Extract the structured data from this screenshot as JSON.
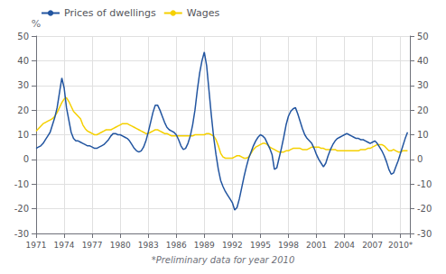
{
  "chart_data": {
    "type": "line",
    "xlabel": "*Preliminary data for year 2010",
    "ylabel": "%",
    "xlim": [
      1971,
      2011
    ],
    "xticks": [
      1971,
      1974,
      1977,
      1980,
      1983,
      1986,
      1989,
      1992,
      1995,
      1998,
      2001,
      2004,
      2007,
      {
        "value": 2010,
        "label": "2010*"
      }
    ],
    "ylim": [
      -30,
      50
    ],
    "yticks": [
      -30,
      -20,
      -10,
      0,
      10,
      20,
      30,
      40,
      50
    ],
    "y2lim": [
      -30,
      50
    ],
    "y2ticks": [
      -30,
      -20,
      -10,
      0,
      10,
      20,
      30,
      40,
      50
    ],
    "grid": true,
    "legend": "upper left",
    "x": [
      1971,
      1971.25,
      1971.5,
      1971.75,
      1972,
      1972.25,
      1972.5,
      1972.75,
      1973,
      1973.25,
      1973.5,
      1973.75,
      1974,
      1974.25,
      1974.5,
      1974.75,
      1975,
      1975.25,
      1975.5,
      1975.75,
      1976,
      1976.25,
      1976.5,
      1976.75,
      1977,
      1977.25,
      1977.5,
      1977.75,
      1978,
      1978.25,
      1978.5,
      1978.75,
      1979,
      1979.25,
      1979.5,
      1979.75,
      1980,
      1980.25,
      1980.5,
      1980.75,
      1981,
      1981.25,
      1981.5,
      1981.75,
      1982,
      1982.25,
      1982.5,
      1982.75,
      1983,
      1983.25,
      1983.5,
      1983.75,
      1984,
      1984.25,
      1984.5,
      1984.75,
      1985,
      1985.25,
      1985.5,
      1985.75,
      1986,
      1986.25,
      1986.5,
      1986.75,
      1987,
      1987.25,
      1987.5,
      1987.75,
      1988,
      1988.25,
      1988.5,
      1988.75,
      1989,
      1989.25,
      1989.5,
      1989.75,
      1990,
      1990.25,
      1990.5,
      1990.75,
      1991,
      1991.25,
      1991.5,
      1991.75,
      1992,
      1992.25,
      1992.5,
      1992.75,
      1993,
      1993.25,
      1993.5,
      1993.75,
      1994,
      1994.25,
      1994.5,
      1994.75,
      1995,
      1995.25,
      1995.5,
      1995.75,
      1996,
      1996.25,
      1996.5,
      1996.75,
      1997,
      1997.25,
      1997.5,
      1997.75,
      1998,
      1998.25,
      1998.5,
      1998.75,
      1999,
      1999.25,
      1999.5,
      1999.75,
      2000,
      2000.25,
      2000.5,
      2000.75,
      2001,
      2001.25,
      2001.5,
      2001.75,
      2002,
      2002.25,
      2002.5,
      2002.75,
      2003,
      2003.25,
      2003.5,
      2003.75,
      2004,
      2004.25,
      2004.5,
      2004.75,
      2005,
      2005.25,
      2005.5,
      2005.75,
      2006,
      2006.25,
      2006.5,
      2006.75,
      2007,
      2007.25,
      2007.5,
      2007.75,
      2008,
      2008.25,
      2008.5,
      2008.75,
      2009,
      2009.25,
      2009.5,
      2009.75,
      2010,
      2010.25,
      2010.5,
      2010.75
    ],
    "series": [
      {
        "name": "Prices of dwellings",
        "color": "#2255a0",
        "values": [
          4.5,
          5.0,
          5.5,
          6.5,
          8.0,
          9.5,
          11.0,
          14.0,
          17.0,
          21.0,
          27.0,
          33.0,
          29.0,
          21.0,
          16.0,
          11.0,
          8.5,
          7.5,
          7.5,
          7.0,
          6.5,
          6.0,
          5.5,
          5.5,
          5.0,
          4.5,
          4.5,
          5.0,
          5.5,
          6.0,
          7.0,
          8.0,
          9.5,
          10.5,
          10.5,
          10.0,
          10.0,
          9.5,
          9.0,
          8.5,
          7.5,
          6.0,
          4.5,
          3.5,
          3.0,
          3.5,
          5.0,
          7.5,
          11.0,
          15.0,
          19.0,
          22.0,
          22.0,
          20.0,
          17.5,
          15.0,
          13.0,
          12.0,
          11.5,
          11.0,
          10.0,
          8.0,
          5.5,
          4.0,
          4.5,
          6.5,
          9.5,
          14.0,
          20.0,
          28.0,
          35.0,
          40.0,
          43.5,
          38.0,
          28.0,
          18.0,
          9.0,
          2.0,
          -4.0,
          -8.5,
          -11.0,
          -13.0,
          -14.5,
          -16.0,
          -17.5,
          -20.5,
          -19.5,
          -16.0,
          -11.5,
          -7.0,
          -3.0,
          0.5,
          3.0,
          5.5,
          7.5,
          9.0,
          10.0,
          9.5,
          8.5,
          6.5,
          4.5,
          2.0,
          -4.0,
          -3.5,
          0.5,
          4.5,
          9.0,
          14.0,
          17.5,
          19.5,
          20.5,
          21.0,
          18.5,
          15.5,
          12.5,
          10.0,
          8.5,
          7.5,
          6.5,
          4.5,
          2.0,
          0.0,
          -1.5,
          -3.0,
          -1.5,
          1.5,
          4.0,
          6.0,
          7.5,
          8.5,
          9.0,
          9.5,
          10.0,
          10.5,
          10.0,
          9.5,
          9.0,
          8.5,
          8.5,
          8.0,
          8.0,
          7.5,
          7.0,
          6.5,
          7.0,
          7.5,
          6.5,
          5.0,
          3.5,
          1.5,
          -1.0,
          -4.0,
          -6.0,
          -5.5,
          -3.0,
          -0.5,
          2.5,
          5.5,
          8.5,
          11.0
        ]
      },
      {
        "name": "Wages",
        "color": "#f5d000",
        "values": [
          11.5,
          12.5,
          13.5,
          14.5,
          15.0,
          15.5,
          16.0,
          16.5,
          17.5,
          19.0,
          21.0,
          23.0,
          24.5,
          25.0,
          23.5,
          21.5,
          19.5,
          18.5,
          17.5,
          16.5,
          14.0,
          12.5,
          11.5,
          11.0,
          10.5,
          10.0,
          10.0,
          10.5,
          11.0,
          11.5,
          12.0,
          12.0,
          12.0,
          12.5,
          13.0,
          13.5,
          14.0,
          14.5,
          14.5,
          14.5,
          14.0,
          13.5,
          13.0,
          12.5,
          12.0,
          11.5,
          11.0,
          10.5,
          10.5,
          11.0,
          11.5,
          12.0,
          12.0,
          11.5,
          11.0,
          10.5,
          10.5,
          10.0,
          9.5,
          9.5,
          9.5,
          9.5,
          9.5,
          9.5,
          9.5,
          9.5,
          9.5,
          9.5,
          10.0,
          10.0,
          10.0,
          10.0,
          10.0,
          10.5,
          10.5,
          10.0,
          9.5,
          8.0,
          5.5,
          2.5,
          1.0,
          0.5,
          0.5,
          0.5,
          0.5,
          1.0,
          1.5,
          1.5,
          1.0,
          0.5,
          0.5,
          1.0,
          2.5,
          4.0,
          5.0,
          5.5,
          6.0,
          6.5,
          6.5,
          6.0,
          5.0,
          4.5,
          4.0,
          3.5,
          3.0,
          3.0,
          3.0,
          3.5,
          3.5,
          4.0,
          4.5,
          4.5,
          4.5,
          4.5,
          4.0,
          4.0,
          4.0,
          4.5,
          5.0,
          5.0,
          5.0,
          5.0,
          4.5,
          4.5,
          4.0,
          4.0,
          4.0,
          4.0,
          4.0,
          3.5,
          3.5,
          3.5,
          3.5,
          3.5,
          3.5,
          3.5,
          3.5,
          3.5,
          3.5,
          4.0,
          4.0,
          4.0,
          4.5,
          4.5,
          5.0,
          5.5,
          6.0,
          6.0,
          6.0,
          5.5,
          4.5,
          3.5,
          3.5,
          4.0,
          3.5,
          3.0,
          3.0,
          3.5,
          3.5,
          3.5
        ]
      }
    ]
  }
}
